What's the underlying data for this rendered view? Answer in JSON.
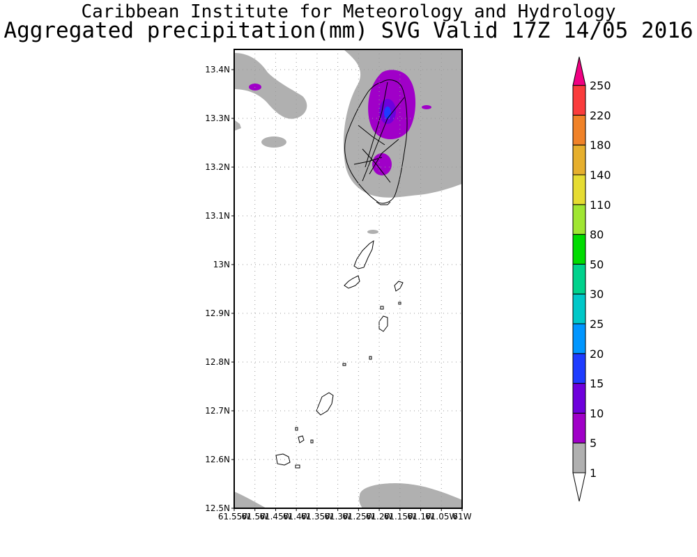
{
  "header": {
    "title": "Caribbean Institute for Meteorology and Hydrology",
    "subtitle": "Aggregated precipitation(mm) SVG Valid 17Z 14/05 2016"
  },
  "map": {
    "lat_labels": [
      "13.4N",
      "13.3N",
      "13.2N",
      "13.1N",
      "13N",
      "12.9N",
      "12.8N",
      "12.7N",
      "12.6N",
      "12.5N"
    ],
    "lon_labels": [
      "61.55W",
      "61.5W",
      "61.45W",
      "61.4W",
      "61.35W",
      "61.3W",
      "61.25W",
      "61.2W",
      "61.15W",
      "61.1W",
      "61.05W",
      "61W"
    ],
    "grid": true
  },
  "colorbar": {
    "levels": [
      "1",
      "5",
      "10",
      "15",
      "20",
      "25",
      "30",
      "50",
      "80",
      "110",
      "140",
      "180",
      "220",
      "250"
    ],
    "colors": [
      "#ffffff",
      "#b0b0b0",
      "#a000c8",
      "#6e00dc",
      "#1e3cff",
      "#0096ff",
      "#00c8c8",
      "#00d28c",
      "#00dc00",
      "#a0e632",
      "#e6dc32",
      "#e6af2d",
      "#f08228",
      "#fa3c3c",
      "#f00082"
    ]
  }
}
